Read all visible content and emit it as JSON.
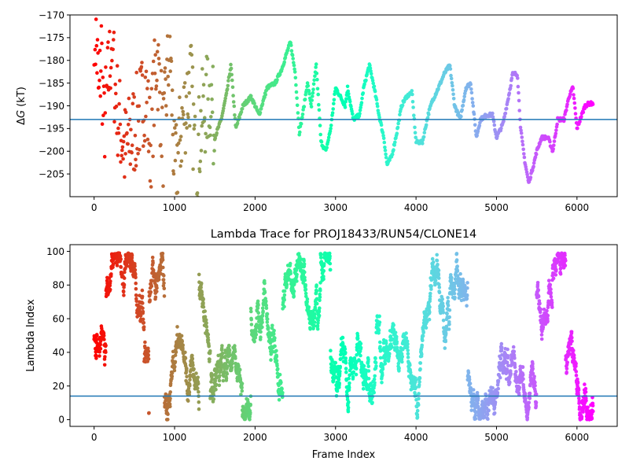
{
  "chart_data": [
    {
      "type": "scatter",
      "title": "",
      "xlabel": "",
      "ylabel": "ΔG (kT)",
      "ylabel_parts": {
        "delta": "Δ",
        "var": "G",
        "unit": " (kT)"
      },
      "xlim": [
        -300,
        6500
      ],
      "ylim": [
        -210,
        -170
      ],
      "xticks": [
        0,
        1000,
        2000,
        3000,
        4000,
        5000,
        6000
      ],
      "yticks": [
        -205,
        -200,
        -195,
        -190,
        -185,
        -180,
        -175,
        -170
      ],
      "reference_line_y": -193,
      "reference_line_color": "#1f77b4",
      "colormap": "rainbow (red at frame 0 → purple at final frame)",
      "series": [
        {
          "x": 0,
          "y": -170
        },
        {
          "x": 40,
          "y": -180
        },
        {
          "x": 60,
          "y": -190
        },
        {
          "x": 90,
          "y": -177
        },
        {
          "x": 120,
          "y": -195
        },
        {
          "x": 160,
          "y": -188
        },
        {
          "x": 220,
          "y": -175
        },
        {
          "x": 260,
          "y": -186
        },
        {
          "x": 300,
          "y": -192
        },
        {
          "x": 380,
          "y": -200
        },
        {
          "x": 460,
          "y": -197
        },
        {
          "x": 560,
          "y": -192
        },
        {
          "x": 640,
          "y": -186
        },
        {
          "x": 700,
          "y": -199
        },
        {
          "x": 780,
          "y": -178
        },
        {
          "x": 860,
          "y": -198
        },
        {
          "x": 940,
          "y": -175
        },
        {
          "x": 1000,
          "y": -206
        },
        {
          "x": 1100,
          "y": -193
        },
        {
          "x": 1200,
          "y": -184
        },
        {
          "x": 1260,
          "y": -203
        },
        {
          "x": 1350,
          "y": -192
        },
        {
          "x": 1450,
          "y": -187
        },
        {
          "x": 1500,
          "y": -197
        },
        {
          "x": 1580,
          "y": -193
        },
        {
          "x": 1650,
          "y": -187
        },
        {
          "x": 1700,
          "y": -181
        },
        {
          "x": 1760,
          "y": -195
        },
        {
          "x": 1850,
          "y": -190
        },
        {
          "x": 1950,
          "y": -188
        },
        {
          "x": 2050,
          "y": -192
        },
        {
          "x": 2150,
          "y": -186
        },
        {
          "x": 2250,
          "y": -185
        },
        {
          "x": 2330,
          "y": -182
        },
        {
          "x": 2400,
          "y": -178
        },
        {
          "x": 2440,
          "y": -176
        },
        {
          "x": 2500,
          "y": -183
        },
        {
          "x": 2550,
          "y": -196
        },
        {
          "x": 2600,
          "y": -191
        },
        {
          "x": 2650,
          "y": -185
        },
        {
          "x": 2700,
          "y": -190
        },
        {
          "x": 2760,
          "y": -181
        },
        {
          "x": 2820,
          "y": -198
        },
        {
          "x": 2880,
          "y": -200
        },
        {
          "x": 2940,
          "y": -195
        },
        {
          "x": 3000,
          "y": -186
        },
        {
          "x": 3060,
          "y": -188
        },
        {
          "x": 3120,
          "y": -190
        },
        {
          "x": 3150,
          "y": -186
        },
        {
          "x": 3220,
          "y": -193
        },
        {
          "x": 3300,
          "y": -192
        },
        {
          "x": 3350,
          "y": -186
        },
        {
          "x": 3420,
          "y": -181
        },
        {
          "x": 3480,
          "y": -186
        },
        {
          "x": 3540,
          "y": -192
        },
        {
          "x": 3600,
          "y": -197
        },
        {
          "x": 3640,
          "y": -203
        },
        {
          "x": 3700,
          "y": -201
        },
        {
          "x": 3760,
          "y": -196
        },
        {
          "x": 3820,
          "y": -190
        },
        {
          "x": 3880,
          "y": -188
        },
        {
          "x": 3950,
          "y": -187
        },
        {
          "x": 4000,
          "y": -198
        },
        {
          "x": 4080,
          "y": -198
        },
        {
          "x": 4150,
          "y": -192
        },
        {
          "x": 4200,
          "y": -189
        },
        {
          "x": 4280,
          "y": -186
        },
        {
          "x": 4350,
          "y": -183
        },
        {
          "x": 4420,
          "y": -181
        },
        {
          "x": 4480,
          "y": -190
        },
        {
          "x": 4550,
          "y": -193
        },
        {
          "x": 4620,
          "y": -186
        },
        {
          "x": 4680,
          "y": -185
        },
        {
          "x": 4750,
          "y": -197
        },
        {
          "x": 4800,
          "y": -193
        },
        {
          "x": 4880,
          "y": -192
        },
        {
          "x": 4950,
          "y": -192
        },
        {
          "x": 5000,
          "y": -197
        },
        {
          "x": 5080,
          "y": -194
        },
        {
          "x": 5150,
          "y": -188
        },
        {
          "x": 5200,
          "y": -183
        },
        {
          "x": 5260,
          "y": -183
        },
        {
          "x": 5300,
          "y": -195
        },
        {
          "x": 5350,
          "y": -202
        },
        {
          "x": 5400,
          "y": -207
        },
        {
          "x": 5460,
          "y": -203
        },
        {
          "x": 5500,
          "y": -200
        },
        {
          "x": 5560,
          "y": -197
        },
        {
          "x": 5640,
          "y": -197
        },
        {
          "x": 5700,
          "y": -200
        },
        {
          "x": 5760,
          "y": -193
        },
        {
          "x": 5840,
          "y": -193
        },
        {
          "x": 5900,
          "y": -188
        },
        {
          "x": 5950,
          "y": -186
        },
        {
          "x": 6000,
          "y": -195
        },
        {
          "x": 6060,
          "y": -192
        },
        {
          "x": 6100,
          "y": -190
        },
        {
          "x": 6150,
          "y": -189.5
        },
        {
          "x": 6200,
          "y": -189.5
        }
      ]
    },
    {
      "type": "scatter",
      "title": "Lambda Trace for PROJ18433/RUN54/CLONE14",
      "xlabel": "Frame Index",
      "ylabel": "Lambda Index",
      "xlim": [
        -300,
        6500
      ],
      "ylim": [
        -4,
        104
      ],
      "xticks": [
        0,
        1000,
        2000,
        3000,
        4000,
        5000,
        6000
      ],
      "yticks": [
        0,
        20,
        40,
        60,
        80,
        100
      ],
      "reference_line_y": 14,
      "reference_line_color": "#1f77b4",
      "colormap": "rainbow (red at frame 0 → purple at final frame)",
      "x_range": [
        0,
        6200
      ],
      "y_range": [
        0,
        99
      ],
      "n_frames": 6200
    }
  ]
}
